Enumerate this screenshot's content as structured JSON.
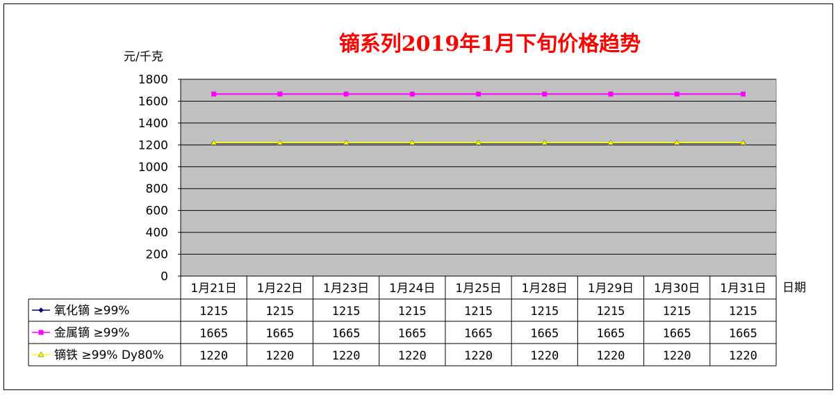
{
  "chart_data": {
    "type": "line",
    "title": "镝系列2019年1月下旬价格趋势",
    "ylabel": "元/千克",
    "xlabel": "日期",
    "ylim": [
      0,
      1800
    ],
    "yticks": [
      0,
      200,
      400,
      600,
      800,
      1000,
      1200,
      1400,
      1600,
      1800
    ],
    "grid": true,
    "plot_background": "#c0c0c0",
    "categories": [
      "1月21日",
      "1月22日",
      "1月23日",
      "1月24日",
      "1月25日",
      "1月28日",
      "1月29日",
      "1月30日",
      "1月31日"
    ],
    "series": [
      {
        "name": "氧化镝 ≥99%",
        "color": "#000080",
        "marker": "diamond",
        "values": [
          1215,
          1215,
          1215,
          1215,
          1215,
          1215,
          1215,
          1215,
          1215
        ]
      },
      {
        "name": "金属镝 ≥99%",
        "color": "#ff00ff",
        "marker": "square",
        "values": [
          1665,
          1665,
          1665,
          1665,
          1665,
          1665,
          1665,
          1665,
          1665
        ]
      },
      {
        "name": "镝铁 ≥99% Dy80%",
        "color": "#ffff00",
        "marker": "triangle",
        "values": [
          1220,
          1220,
          1220,
          1220,
          1220,
          1220,
          1220,
          1220,
          1220
        ]
      }
    ],
    "data_table": true
  }
}
